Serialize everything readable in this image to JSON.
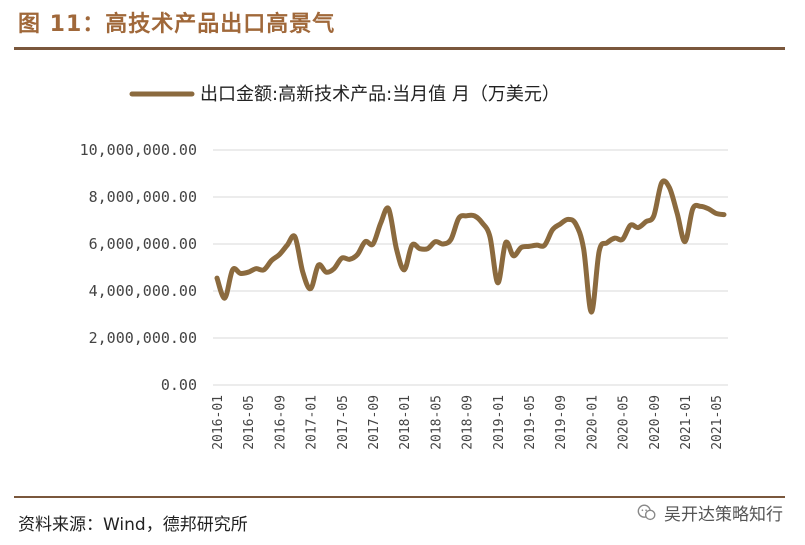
{
  "figure": {
    "title": "图 11：高技术产品出口高景气",
    "source": "资料来源：Wind，德邦研究所",
    "watermark": "吴开达策略知行",
    "line_color": "#8b6a3e"
  },
  "chart_data": {
    "type": "line",
    "title": "",
    "xlabel": "",
    "ylabel": "",
    "ylim": [
      0,
      10000000
    ],
    "yticks": [
      0,
      2000000,
      4000000,
      6000000,
      8000000,
      10000000
    ],
    "ytick_labels": [
      "0.00",
      "2,000,000.00",
      "4,000,000.00",
      "6,000,000.00",
      "8,000,000.00",
      "10,000,000.00"
    ],
    "xtick_labels": [
      "2016-01",
      "2016-05",
      "2016-09",
      "2017-01",
      "2017-05",
      "2017-09",
      "2018-01",
      "2018-05",
      "2018-09",
      "2019-01",
      "2019-05",
      "2019-09",
      "2020-01",
      "2020-05",
      "2020-09",
      "2021-01",
      "2021-05"
    ],
    "grid": true,
    "legend": "top",
    "series": [
      {
        "name": "出口金额:高新技术产品:当月值 月（万美元）",
        "x": [
          "2016-01",
          "2016-02",
          "2016-03",
          "2016-04",
          "2016-05",
          "2016-06",
          "2016-07",
          "2016-08",
          "2016-09",
          "2016-10",
          "2016-11",
          "2016-12",
          "2017-01",
          "2017-02",
          "2017-03",
          "2017-04",
          "2017-05",
          "2017-06",
          "2017-07",
          "2017-08",
          "2017-09",
          "2017-10",
          "2017-11",
          "2017-12",
          "2018-01",
          "2018-02",
          "2018-03",
          "2018-04",
          "2018-05",
          "2018-06",
          "2018-07",
          "2018-08",
          "2018-09",
          "2018-10",
          "2018-11",
          "2018-12",
          "2019-01",
          "2019-02",
          "2019-03",
          "2019-04",
          "2019-05",
          "2019-06",
          "2019-07",
          "2019-08",
          "2019-09",
          "2019-10",
          "2019-11",
          "2019-12",
          "2020-01",
          "2020-02",
          "2020-03",
          "2020-04",
          "2020-05",
          "2020-06",
          "2020-07",
          "2020-08",
          "2020-09",
          "2020-10",
          "2020-11",
          "2020-12",
          "2021-01",
          "2021-02",
          "2021-03",
          "2021-04",
          "2021-05",
          "2021-06"
        ],
        "values": [
          4550000,
          3700000,
          4900000,
          4750000,
          4800000,
          4950000,
          4900000,
          5300000,
          5550000,
          5950000,
          6300000,
          4800000,
          4100000,
          5100000,
          4800000,
          4950000,
          5400000,
          5350000,
          5550000,
          6100000,
          6000000,
          6900000,
          7500000,
          5800000,
          4900000,
          5950000,
          5800000,
          5800000,
          6100000,
          6000000,
          6200000,
          7100000,
          7200000,
          7200000,
          6900000,
          6300000,
          4350000,
          6050000,
          5500000,
          5850000,
          5900000,
          5950000,
          5950000,
          6600000,
          6850000,
          7050000,
          6850000,
          5800000,
          3100000,
          5700000,
          6050000,
          6250000,
          6200000,
          6800000,
          6700000,
          6950000,
          7200000,
          8600000,
          8400000,
          7300000,
          6100000,
          7500000,
          7600000,
          7500000,
          7300000,
          7250000
        ]
      }
    ]
  }
}
